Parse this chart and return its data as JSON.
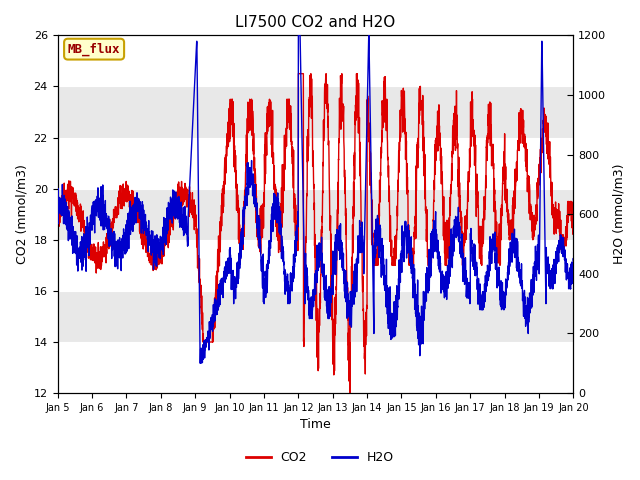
{
  "title": "LI7500 CO2 and H2O",
  "xlabel": "Time",
  "ylabel_left": "CO2 (mmol/m3)",
  "ylabel_right": "H2O (mmol/m3)",
  "ylim_left": [
    12,
    26
  ],
  "ylim_right": [
    0,
    1200
  ],
  "yticks_left": [
    12,
    14,
    16,
    18,
    20,
    22,
    24,
    26
  ],
  "yticks_right": [
    0,
    200,
    400,
    600,
    800,
    1000,
    1200
  ],
  "xticklabels": [
    "Jan 5",
    "Jan 6",
    "Jan 7",
    "Jan 8",
    "Jan 9",
    "Jan 10",
    "Jan 11",
    "Jan 12",
    "Jan 13",
    "Jan 14",
    "Jan 15",
    "Jan 16",
    "Jan 17",
    "Jan 18",
    "Jan 19",
    "Jan 20"
  ],
  "annotation_text": "MB_flux",
  "annotation_bg": "#ffffcc",
  "annotation_border": "#c8a000",
  "plot_bg": "#e8e8e8",
  "stripe_color": "#ffffff",
  "co2_color": "#dd0000",
  "h2o_color": "#0000cc",
  "linewidth": 1.0,
  "title_fontsize": 11,
  "tick_fontsize": 8,
  "label_fontsize": 9
}
